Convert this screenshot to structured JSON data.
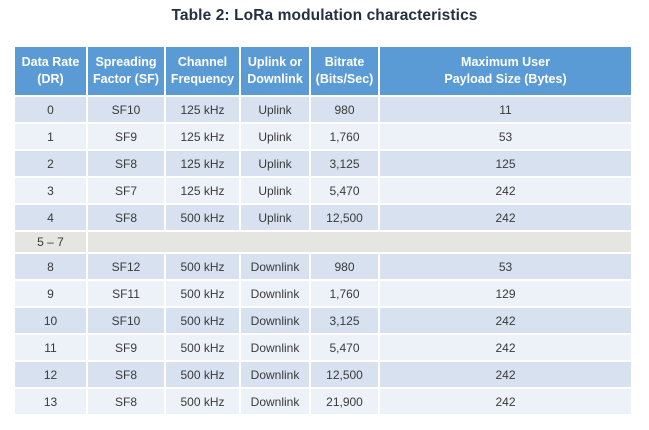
{
  "title": "Table 2: LoRa modulation characteristics",
  "colors": {
    "header_bg": "#5b9bd5",
    "header_text": "#ffffff",
    "row_dark": "#d7e1ef",
    "row_light": "#edf1f8",
    "row_gray": "#e5e5e1",
    "title_text": "#23303e",
    "body_text": "#3a3a3a"
  },
  "table": {
    "headers": [
      {
        "lines": [
          "Data Rate",
          "(DR)"
        ]
      },
      {
        "lines": [
          "Spreading",
          "Factor (SF)"
        ]
      },
      {
        "lines": [
          "Channel",
          "Frequency"
        ]
      },
      {
        "lines": [
          "Uplink or",
          "Downlink"
        ]
      },
      {
        "lines": [
          "Bitrate",
          "(Bits/Sec)"
        ]
      },
      {
        "lines": [
          "Maximum User",
          "Payload Size (Bytes)"
        ]
      }
    ],
    "rows": [
      {
        "type": "data",
        "shade": "dark",
        "cells": [
          "0",
          "SF10",
          "125 kHz",
          "Uplink",
          "980",
          "11"
        ]
      },
      {
        "type": "data",
        "shade": "light",
        "cells": [
          "1",
          "SF9",
          "125 kHz",
          "Uplink",
          "1,760",
          "53"
        ]
      },
      {
        "type": "data",
        "shade": "dark",
        "cells": [
          "2",
          "SF8",
          "125 kHz",
          "Uplink",
          "3,125",
          "125"
        ]
      },
      {
        "type": "data",
        "shade": "light",
        "cells": [
          "3",
          "SF7",
          "125 kHz",
          "Uplink",
          "5,470",
          "242"
        ]
      },
      {
        "type": "data",
        "shade": "dark",
        "cells": [
          "4",
          "SF8",
          "500 kHz",
          "Uplink",
          "12,500",
          "242"
        ]
      },
      {
        "type": "span",
        "shade": "gray",
        "cells": [
          "5 – 7",
          ""
        ]
      },
      {
        "type": "data",
        "shade": "dark",
        "cells": [
          "8",
          "SF12",
          "500 kHz",
          "Downlink",
          "980",
          "53"
        ]
      },
      {
        "type": "data",
        "shade": "light",
        "cells": [
          "9",
          "SF11",
          "500 kHz",
          "Downlink",
          "1,760",
          "129"
        ]
      },
      {
        "type": "data",
        "shade": "dark",
        "cells": [
          "10",
          "SF10",
          "500 kHz",
          "Downlink",
          "3,125",
          "242"
        ]
      },
      {
        "type": "data",
        "shade": "light",
        "cells": [
          "11",
          "SF9",
          "500 kHz",
          "Downlink",
          "5,470",
          "242"
        ]
      },
      {
        "type": "data",
        "shade": "dark",
        "cells": [
          "12",
          "SF8",
          "500 kHz",
          "Downlink",
          "12,500",
          "242"
        ]
      },
      {
        "type": "data",
        "shade": "light",
        "cells": [
          "13",
          "SF8",
          "500 kHz",
          "Downlink",
          "21,900",
          "242"
        ]
      }
    ]
  }
}
